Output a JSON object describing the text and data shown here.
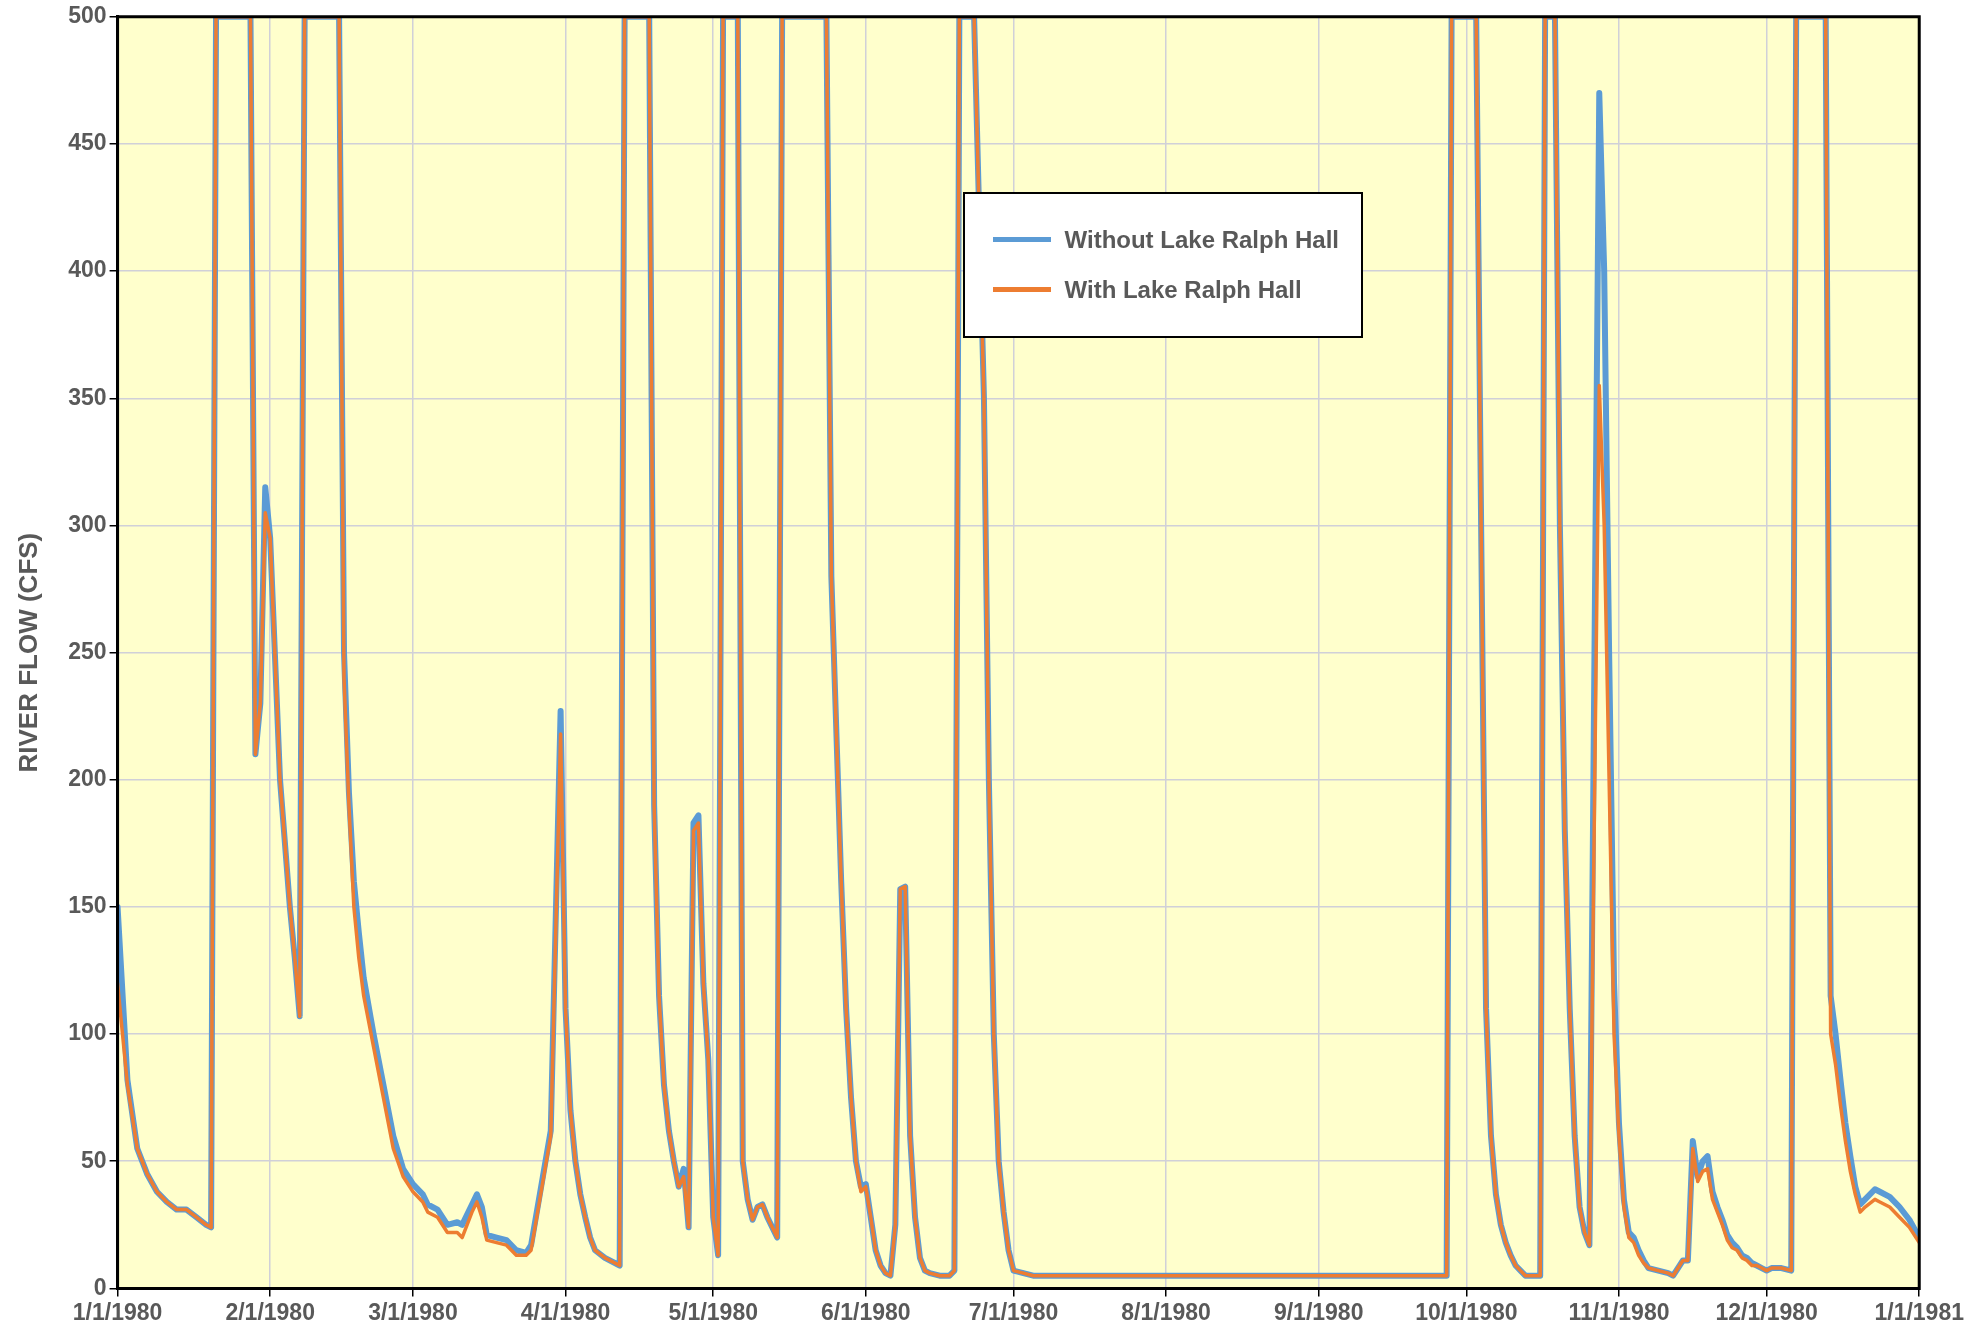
{
  "chart_data": {
    "type": "line",
    "ylabel": "RIVER FLOW (CFS)",
    "x": [
      "1980-01-01",
      "1980-01-03",
      "1980-01-05",
      "1980-01-07",
      "1980-01-09",
      "1980-01-11",
      "1980-01-13",
      "1980-01-15",
      "1980-01-17",
      "1980-01-19",
      "1980-01-20",
      "1980-01-21",
      "1980-01-28",
      "1980-01-29",
      "1980-01-30",
      "1980-01-31",
      "1980-02-01",
      "1980-02-03",
      "1980-02-05",
      "1980-02-06",
      "1980-02-07",
      "1980-02-08",
      "1980-02-15",
      "1980-02-16",
      "1980-02-17",
      "1980-02-18",
      "1980-02-19",
      "1980-02-20",
      "1980-02-22",
      "1980-02-24",
      "1980-02-26",
      "1980-02-28",
      "1980-03-01",
      "1980-03-03",
      "1980-03-04",
      "1980-03-06",
      "1980-03-08",
      "1980-03-10",
      "1980-03-11",
      "1980-03-13",
      "1980-03-14",
      "1980-03-15",
      "1980-03-16",
      "1980-03-18",
      "1980-03-20",
      "1980-03-22",
      "1980-03-24",
      "1980-03-25",
      "1980-03-29",
      "1980-03-31",
      "1980-04-01",
      "1980-04-02",
      "1980-04-03",
      "1980-04-04",
      "1980-04-05",
      "1980-04-06",
      "1980-04-07",
      "1980-04-09",
      "1980-04-12",
      "1980-04-13",
      "1980-04-18",
      "1980-04-19",
      "1980-04-20",
      "1980-04-21",
      "1980-04-22",
      "1980-04-23",
      "1980-04-24",
      "1980-04-25",
      "1980-04-26",
      "1980-04-27",
      "1980-04-28",
      "1980-04-29",
      "1980-04-30",
      "1980-05-01",
      "1980-05-02",
      "1980-05-03",
      "1980-05-06",
      "1980-05-07",
      "1980-05-08",
      "1980-05-09",
      "1980-05-10",
      "1980-05-11",
      "1980-05-12",
      "1980-05-14",
      "1980-05-15",
      "1980-05-24",
      "1980-05-25",
      "1980-05-27",
      "1980-05-28",
      "1980-05-29",
      "1980-05-30",
      "1980-05-31",
      "1980-06-01",
      "1980-06-02",
      "1980-06-03",
      "1980-06-04",
      "1980-06-05",
      "1980-06-06",
      "1980-06-07",
      "1980-06-08",
      "1980-06-09",
      "1980-06-10",
      "1980-06-11",
      "1980-06-12",
      "1980-06-13",
      "1980-06-14",
      "1980-06-16",
      "1980-06-18",
      "1980-06-19",
      "1980-06-20",
      "1980-06-23",
      "1980-06-25",
      "1980-06-26",
      "1980-06-27",
      "1980-06-28",
      "1980-06-29",
      "1980-06-30",
      "1980-07-01",
      "1980-07-03",
      "1980-07-05",
      "1980-09-27",
      "1980-09-28",
      "1980-10-03",
      "1980-10-04",
      "1980-10-05",
      "1980-10-06",
      "1980-10-07",
      "1980-10-08",
      "1980-10-09",
      "1980-10-10",
      "1980-10-11",
      "1980-10-12",
      "1980-10-13",
      "1980-10-15",
      "1980-10-16",
      "1980-10-17",
      "1980-10-19",
      "1980-10-20",
      "1980-10-21",
      "1980-10-22",
      "1980-10-23",
      "1980-10-24",
      "1980-10-25",
      "1980-10-26",
      "1980-10-28",
      "1980-10-29",
      "1980-10-30",
      "1980-10-31",
      "1980-11-01",
      "1980-11-02",
      "1980-11-03",
      "1980-11-04",
      "1980-11-05",
      "1980-11-06",
      "1980-11-07",
      "1980-11-09",
      "1980-11-11",
      "1980-11-12",
      "1980-11-14",
      "1980-11-15",
      "1980-11-16",
      "1980-11-17",
      "1980-11-18",
      "1980-11-19",
      "1980-11-20",
      "1980-11-21",
      "1980-11-22",
      "1980-11-23",
      "1980-11-24",
      "1980-11-25",
      "1980-11-26",
      "1980-11-27",
      "1980-11-28",
      "1980-11-29",
      "1980-11-30",
      "1980-12-01",
      "1980-12-02",
      "1980-12-04",
      "1980-12-06",
      "1980-12-07",
      "1980-12-13",
      "1980-12-14",
      "1980-12-15",
      "1980-12-16",
      "1980-12-17",
      "1980-12-18",
      "1980-12-19",
      "1980-12-20",
      "1980-12-21",
      "1980-12-23",
      "1980-12-24",
      "1980-12-26",
      "1980-12-28",
      "1980-12-30",
      "1981-01-01"
    ],
    "series": [
      {
        "name": "Without Lake Ralph Hall",
        "color": "#5b9bd5",
        "values": [
          150,
          82,
          55,
          45,
          38,
          34,
          31,
          31,
          28,
          25,
          24,
          500,
          500,
          210,
          230,
          315,
          295,
          200,
          150,
          130,
          107,
          500,
          500,
          250,
          195,
          160,
          140,
          122,
          100,
          80,
          60,
          47,
          41,
          37,
          33,
          31,
          25,
          26,
          25,
          33,
          37,
          32,
          21,
          20,
          19,
          15,
          14,
          17,
          62,
          227,
          110,
          70,
          50,
          37,
          28,
          20,
          15,
          12,
          9,
          500,
          500,
          190,
          115,
          80,
          62,
          50,
          40,
          47,
          24,
          183,
          186,
          120,
          90,
          28,
          13,
          500,
          500,
          50,
          35,
          27,
          32,
          33,
          28,
          20,
          500,
          500,
          280,
          160,
          110,
          75,
          50,
          40,
          41,
          28,
          15,
          9,
          6,
          5,
          25,
          157,
          158,
          60,
          28,
          12,
          7,
          6,
          5,
          5,
          7,
          500,
          500,
          350,
          200,
          100,
          50,
          30,
          15,
          7,
          6,
          5,
          5,
          500,
          500,
          300,
          110,
          60,
          37,
          25,
          18,
          13,
          9,
          7,
          5,
          5,
          5,
          500,
          500,
          300,
          180,
          110,
          60,
          32,
          22,
          17,
          470,
          400,
          250,
          120,
          65,
          35,
          22,
          20,
          15,
          11,
          8,
          7,
          6,
          5,
          11,
          11,
          58,
          44,
          50,
          52,
          38,
          32,
          27,
          21,
          18,
          16,
          13,
          12,
          10,
          9,
          8,
          7,
          8,
          8,
          7,
          500,
          500,
          115,
          100,
          82,
          65,
          52,
          40,
          33,
          35,
          39,
          38,
          36,
          32,
          27,
          20
        ]
      },
      {
        "name": "With Lake Ralph Hall",
        "color": "#ed7d31",
        "values": [
          120,
          80,
          55,
          45,
          38,
          34,
          31,
          31,
          28,
          25,
          24,
          500,
          500,
          210,
          230,
          305,
          295,
          200,
          150,
          130,
          107,
          500,
          500,
          240,
          190,
          150,
          130,
          115,
          95,
          75,
          55,
          44,
          38,
          34,
          30,
          28,
          22,
          22,
          20,
          30,
          34,
          28,
          19,
          18,
          17,
          13,
          13,
          15,
          60,
          218,
          110,
          70,
          50,
          37,
          28,
          20,
          15,
          12,
          9,
          500,
          500,
          190,
          115,
          80,
          62,
          50,
          40,
          44,
          24,
          180,
          183,
          120,
          90,
          28,
          13,
          500,
          500,
          50,
          35,
          27,
          32,
          33,
          28,
          20,
          500,
          500,
          280,
          160,
          110,
          75,
          50,
          38,
          40,
          28,
          15,
          9,
          6,
          5,
          25,
          157,
          158,
          60,
          28,
          12,
          7,
          6,
          5,
          5,
          7,
          500,
          500,
          350,
          200,
          100,
          50,
          30,
          15,
          7,
          6,
          5,
          5,
          500,
          500,
          300,
          110,
          60,
          37,
          25,
          18,
          13,
          9,
          7,
          5,
          5,
          5,
          500,
          500,
          300,
          180,
          110,
          60,
          32,
          22,
          17,
          355,
          300,
          200,
          100,
          60,
          32,
          20,
          18,
          13,
          10,
          8,
          7,
          6,
          5,
          11,
          11,
          55,
          42,
          46,
          47,
          35,
          30,
          25,
          19,
          16,
          15,
          12,
          11,
          9,
          9,
          8,
          7,
          8,
          8,
          7,
          500,
          500,
          100,
          88,
          72,
          58,
          46,
          37,
          30,
          32,
          35,
          34,
          32,
          28,
          24,
          18
        ]
      }
    ],
    "xlim": [
      "1980-01-01",
      "1981-01-01"
    ],
    "xticks": [
      {
        "value": "1980-01-01",
        "label": "1/1/1980"
      },
      {
        "value": "1980-02-01",
        "label": "2/1/1980"
      },
      {
        "value": "1980-03-01",
        "label": "3/1/1980"
      },
      {
        "value": "1980-04-01",
        "label": "4/1/1980"
      },
      {
        "value": "1980-05-01",
        "label": "5/1/1980"
      },
      {
        "value": "1980-06-01",
        "label": "6/1/1980"
      },
      {
        "value": "1980-07-01",
        "label": "7/1/1980"
      },
      {
        "value": "1980-08-01",
        "label": "8/1/1980"
      },
      {
        "value": "1980-09-01",
        "label": "9/1/1980"
      },
      {
        "value": "1980-10-01",
        "label": "10/1/1980"
      },
      {
        "value": "1980-11-01",
        "label": "11/1/1980"
      },
      {
        "value": "1980-12-01",
        "label": "12/1/1980"
      },
      {
        "value": "1981-01-01",
        "label": "1/1/1981"
      }
    ],
    "ylim": [
      0,
      500
    ],
    "yticks": [
      0,
      50,
      100,
      150,
      200,
      250,
      300,
      350,
      400,
      450,
      500
    ],
    "grid": true,
    "legend": "top",
    "marker": "none",
    "line_style": "solid"
  }
}
